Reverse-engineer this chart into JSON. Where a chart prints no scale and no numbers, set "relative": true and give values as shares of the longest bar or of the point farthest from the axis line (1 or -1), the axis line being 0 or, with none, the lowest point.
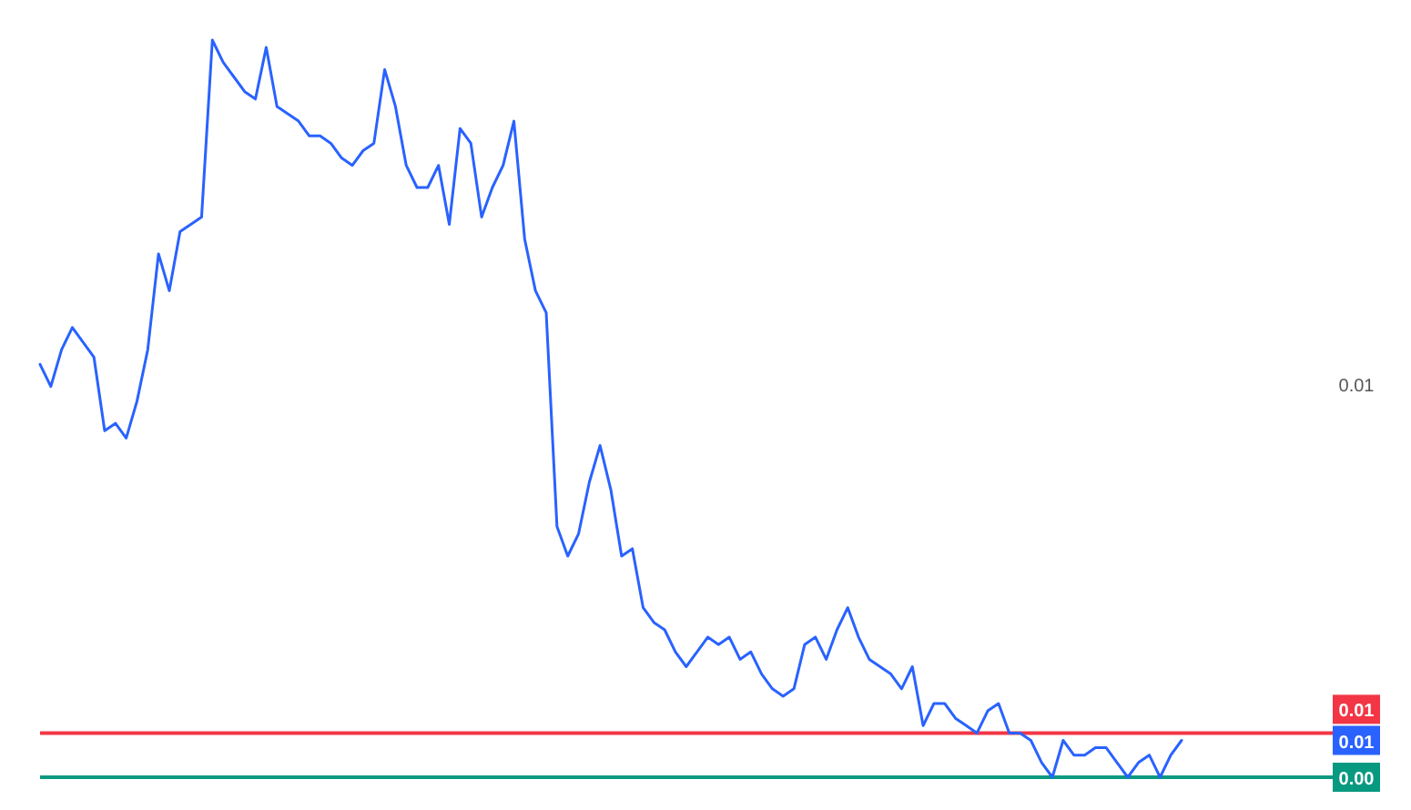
{
  "chart_data": {
    "type": "line",
    "relative": true,
    "categories": [
      null,
      null,
      null,
      null,
      null,
      null,
      null,
      null,
      null,
      null,
      null,
      null,
      null,
      null,
      null,
      null,
      null,
      null,
      null,
      null,
      null,
      null,
      null,
      null,
      null,
      null,
      null,
      null,
      null,
      null,
      null,
      null,
      null,
      null,
      null,
      null,
      null,
      null,
      null,
      null,
      null,
      null,
      null,
      null,
      null,
      null,
      null,
      null,
      null,
      null,
      null,
      null,
      null,
      null,
      null,
      null,
      null,
      null,
      null,
      null,
      null,
      null,
      null,
      null,
      null,
      null,
      null,
      null,
      null,
      null,
      null,
      null,
      null,
      null,
      null,
      null,
      null,
      null,
      null,
      null,
      null,
      null,
      null,
      null,
      null,
      null,
      null,
      null,
      null,
      null,
      null,
      null,
      null,
      null,
      null,
      null,
      null,
      null,
      null,
      null,
      null,
      null,
      null,
      null,
      null,
      null,
      null
    ],
    "series": [
      {
        "color": "#2962ff",
        "values": [
          0.56,
          0.53,
          0.58,
          0.61,
          0.59,
          0.57,
          0.47,
          0.48,
          0.46,
          0.51,
          0.58,
          0.71,
          0.66,
          0.74,
          0.75,
          0.76,
          1.0,
          0.97,
          0.95,
          0.93,
          0.92,
          0.99,
          0.91,
          0.9,
          0.89,
          0.87,
          0.87,
          0.86,
          0.84,
          0.83,
          0.85,
          0.86,
          0.96,
          0.91,
          0.83,
          0.8,
          0.8,
          0.83,
          0.75,
          0.88,
          0.86,
          0.76,
          0.8,
          0.83,
          0.89,
          0.73,
          0.66,
          0.63,
          0.34,
          0.3,
          0.33,
          0.4,
          0.45,
          0.39,
          0.3,
          0.31,
          0.23,
          0.21,
          0.2,
          0.17,
          0.15,
          0.17,
          0.19,
          0.18,
          0.19,
          0.16,
          0.17,
          0.14,
          0.12,
          0.11,
          0.12,
          0.18,
          0.19,
          0.16,
          0.2,
          0.23,
          0.19,
          0.16,
          0.15,
          0.14,
          0.12,
          0.15,
          0.07,
          0.1,
          0.1,
          0.08,
          0.07,
          0.06,
          0.09,
          0.1,
          0.06,
          0.06,
          0.05,
          0.02,
          0.0,
          0.05,
          0.03,
          0.03,
          0.04,
          0.04,
          0.02,
          0.0,
          0.02,
          0.03,
          0.0,
          0.03,
          0.05
        ]
      }
    ],
    "ref_lines": [
      {
        "axis": "y",
        "value": 0.06,
        "color": "#f23645"
      },
      {
        "axis": "y",
        "value": 0.0,
        "color": "#089981"
      }
    ],
    "annotations": [
      "0.01",
      "0.01",
      "0.00",
      "0.01"
    ]
  }
}
